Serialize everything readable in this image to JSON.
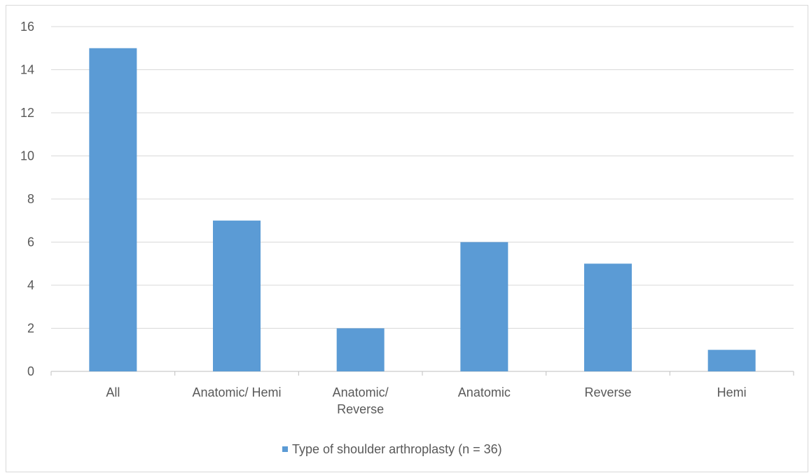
{
  "chart_data": {
    "type": "bar",
    "categories": [
      "All",
      "Anatomic/ Hemi",
      "Anatomic/ Reverse",
      "Anatomic",
      "Reverse",
      "Hemi"
    ],
    "category_label_lines": [
      [
        "All"
      ],
      [
        "Anatomic/ Hemi"
      ],
      [
        "Anatomic/",
        "Reverse"
      ],
      [
        "Anatomic"
      ],
      [
        "Reverse"
      ],
      [
        "Hemi"
      ]
    ],
    "series": [
      {
        "name": "Type of shoulder arthroplasty (n = 36)",
        "values": [
          15,
          7,
          2,
          6,
          5,
          1
        ],
        "color": "#5b9bd5"
      }
    ],
    "ylim": [
      0,
      16
    ],
    "y_ticks": [
      0,
      2,
      4,
      6,
      8,
      10,
      12,
      14,
      16
    ],
    "title": "",
    "xlabel": "",
    "ylabel": "",
    "grid": true,
    "legend_position": "bottom",
    "colors": {
      "bar": "#5b9bd5",
      "gridline": "#d9d9d9",
      "axis": "#bfbfbf",
      "text": "#595959"
    }
  }
}
